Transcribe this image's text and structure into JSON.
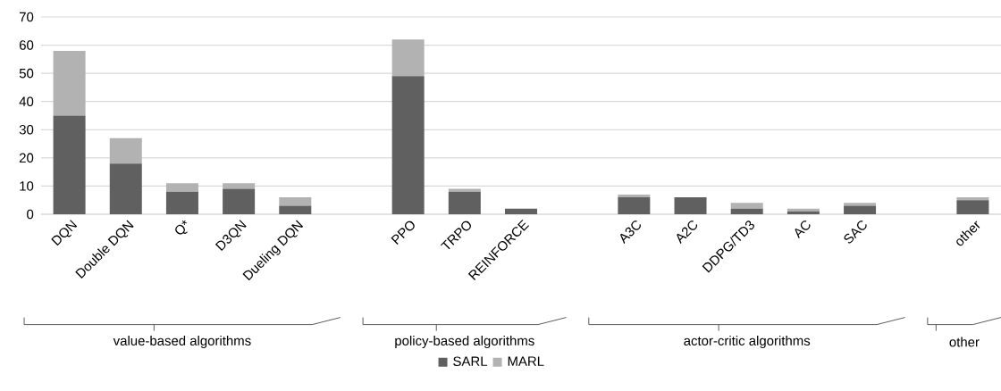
{
  "chart_data": {
    "type": "bar",
    "stacked": true,
    "categories": [
      "DQN",
      "Double DQN",
      "Q*",
      "D3QN",
      "Dueling DQN",
      null,
      "PPO",
      "TRPO",
      "REINFORCE",
      null,
      "A3C",
      "A2C",
      "DDPG/TD3",
      "AC",
      "SAC",
      null,
      "other"
    ],
    "series": [
      {
        "name": "SARL",
        "color": "#606060",
        "values": [
          35,
          18,
          8,
          9,
          3,
          null,
          49,
          8,
          2,
          null,
          6,
          6,
          2,
          1,
          3,
          null,
          5
        ]
      },
      {
        "name": "MARL",
        "color": "#b2b2b2",
        "values": [
          23,
          9,
          3,
          2,
          3,
          null,
          13,
          1,
          0,
          null,
          1,
          0,
          2,
          1,
          1,
          null,
          1
        ]
      }
    ],
    "ylim": [
      0,
      70
    ],
    "yticks": [
      0,
      10,
      20,
      30,
      40,
      50,
      60,
      70
    ],
    "grid": "y",
    "legend": "bottom",
    "annotations": [
      "value-based algorithms",
      "policy-based algorithms",
      "actor-critic algorithms",
      "other"
    ]
  }
}
